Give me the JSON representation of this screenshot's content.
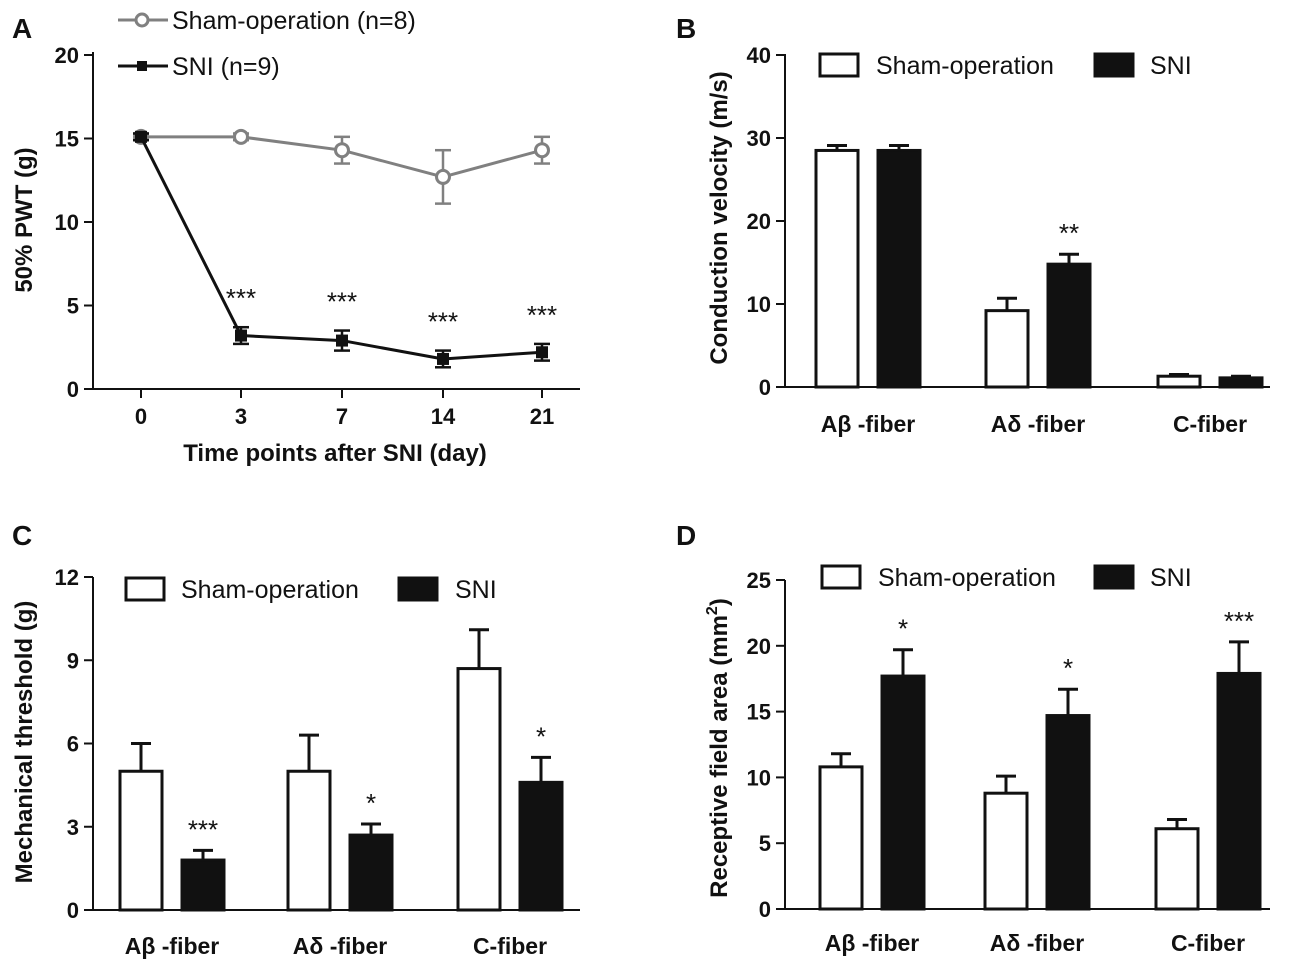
{
  "chart_data": [
    {
      "letter": "A",
      "type": "line",
      "xlabel": "Time points after SNI (day)",
      "ylabel": "50% PWT (g)",
      "categories": [
        "0",
        "3",
        "7",
        "14",
        "21"
      ],
      "ylim": [
        0,
        20
      ],
      "yticks": [
        "0",
        "5",
        "10",
        "15",
        "20"
      ],
      "legend_position": "top-left",
      "series": [
        {
          "name": "Sham-operation (n=8)",
          "values": [
            15.1,
            15.1,
            14.3,
            12.7,
            14.3
          ],
          "errors": [
            0.2,
            0.2,
            0.8,
            1.6,
            0.8
          ],
          "color": "#808080",
          "marker": "open-circle"
        },
        {
          "name": "SNI (n=9)",
          "values": [
            15.1,
            3.2,
            2.9,
            1.8,
            2.2
          ],
          "errors": [
            0.2,
            0.5,
            0.6,
            0.5,
            0.5
          ],
          "color": "#111111",
          "marker": "filled-square"
        }
      ],
      "annotations": [
        {
          "series": 1,
          "index": 1,
          "text": "***"
        },
        {
          "series": 1,
          "index": 2,
          "text": "***"
        },
        {
          "series": 1,
          "index": 3,
          "text": "***"
        },
        {
          "series": 1,
          "index": 4,
          "text": "***"
        }
      ]
    },
    {
      "letter": "B",
      "type": "bar",
      "xlabel": "",
      "ylabel": "Conduction velocity (m/s)",
      "categories": [
        "Aβ -fiber",
        "Aδ -fiber",
        "C-fiber"
      ],
      "ylim": [
        0,
        40
      ],
      "yticks": [
        "0",
        "10",
        "20",
        "30",
        "40"
      ],
      "legend_position": "top",
      "series": [
        {
          "name": "Sham-operation",
          "values": [
            28.5,
            9.2,
            1.3
          ],
          "errors": [
            0.6,
            1.5,
            0.2
          ],
          "fill": "#ffffff"
        },
        {
          "name": "SNI",
          "values": [
            28.5,
            14.8,
            1.1
          ],
          "errors": [
            0.6,
            1.2,
            0.2
          ],
          "fill": "#111111"
        }
      ],
      "annotations": [
        {
          "series": 1,
          "index": 1,
          "text": "**"
        }
      ]
    },
    {
      "letter": "C",
      "type": "bar",
      "xlabel": "",
      "ylabel": "Mechanical threshold (g)",
      "categories": [
        "Aβ -fiber",
        "Aδ -fiber",
        "C-fiber"
      ],
      "ylim": [
        0,
        12
      ],
      "yticks": [
        "0",
        "3",
        "6",
        "9",
        "12"
      ],
      "legend_position": "top",
      "series": [
        {
          "name": "Sham-operation",
          "values": [
            5.0,
            5.0,
            8.7
          ],
          "errors": [
            1.0,
            1.3,
            1.4
          ],
          "fill": "#ffffff"
        },
        {
          "name": "SNI",
          "values": [
            1.8,
            2.7,
            4.6
          ],
          "errors": [
            0.35,
            0.4,
            0.9
          ],
          "fill": "#111111"
        }
      ],
      "annotations": [
        {
          "series": 1,
          "index": 0,
          "text": "***"
        },
        {
          "series": 1,
          "index": 1,
          "text": "*"
        },
        {
          "series": 1,
          "index": 2,
          "text": "*"
        }
      ]
    },
    {
      "letter": "D",
      "type": "bar",
      "xlabel": "",
      "ylabel": "Receptive field area (mm",
      "ylabel_sup": "2",
      "ylabel_tail": ")",
      "categories": [
        "Aβ -fiber",
        "Aδ -fiber",
        "C-fiber"
      ],
      "ylim": [
        0,
        25
      ],
      "yticks": [
        "0",
        "5",
        "10",
        "15",
        "20",
        "25"
      ],
      "legend_position": "top",
      "series": [
        {
          "name": "Sham-operation",
          "values": [
            10.8,
            8.8,
            6.1
          ],
          "errors": [
            1.0,
            1.3,
            0.7
          ],
          "fill": "#ffffff"
        },
        {
          "name": "SNI",
          "values": [
            17.7,
            14.7,
            17.9
          ],
          "errors": [
            2.0,
            2.0,
            2.4
          ],
          "fill": "#111111"
        }
      ],
      "annotations": [
        {
          "series": 1,
          "index": 0,
          "text": "*"
        },
        {
          "series": 1,
          "index": 1,
          "text": "*"
        },
        {
          "series": 1,
          "index": 2,
          "text": "***"
        }
      ]
    }
  ]
}
